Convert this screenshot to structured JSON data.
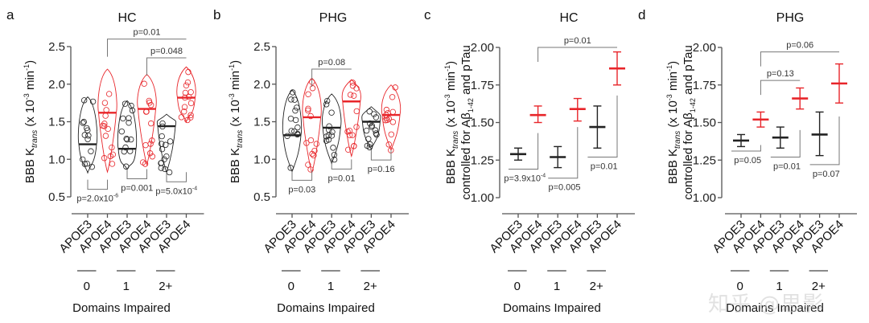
{
  "colors": {
    "apoe3": "#222222",
    "apoe4": "#e8252a",
    "axis": "#555555",
    "bracket": "#777777"
  },
  "watermark": "知乎 @思影",
  "chart_data": [
    {
      "id": "a",
      "type": "violin",
      "letter": "a",
      "title": "HC",
      "ylabel_main": "BBB K",
      "ylabel_sub": "trans",
      "ylabel_unit": " (x 10",
      "ylabel_exp": "-3",
      "ylabel_unit2": " min",
      "ylabel_exp2": "-1",
      "ylabel_close": ")",
      "ylim": [
        0.5,
        2.5
      ],
      "yticks": [
        0.5,
        1.0,
        1.5,
        2.0,
        2.5
      ],
      "ytick_labels": [
        "0.5",
        "1.0",
        "1.5",
        "2.0",
        "2.5"
      ],
      "categories": [
        "APOE3",
        "APOE4",
        "APOE3",
        "APOE4",
        "APOE3",
        "APOE4"
      ],
      "genotype": [
        "APOE3",
        "APOE4",
        "APOE3",
        "APOE4",
        "APOE3",
        "APOE4"
      ],
      "groups": [
        "0",
        "1",
        "2+"
      ],
      "xlabel": "Domains Impaired",
      "series": [
        {
          "name": "APOE3 / 0",
          "median": 1.2,
          "min": 0.82,
          "max": 1.83
        },
        {
          "name": "APOE4 / 0",
          "median": 1.62,
          "min": 0.83,
          "max": 2.2
        },
        {
          "name": "APOE3 / 1",
          "median": 1.14,
          "min": 0.86,
          "max": 1.78
        },
        {
          "name": "APOE4 / 1",
          "median": 1.67,
          "min": 0.93,
          "max": 2.13
        },
        {
          "name": "APOE3 / 2+",
          "median": 1.44,
          "min": 0.82,
          "max": 1.6
        },
        {
          "name": "APOE4 / 2+",
          "median": 1.82,
          "min": 1.5,
          "max": 2.23
        }
      ],
      "brackets_top": [
        {
          "from": 1,
          "to": 5,
          "label": "p=0.01",
          "level": 2.6
        },
        {
          "from": 3,
          "to": 5,
          "label": "p=0.048",
          "level": 2.35
        }
      ],
      "brackets_bottom": [
        {
          "from": 0,
          "to": 1,
          "label": "p=2.0x10",
          "exp": "-6",
          "level": 0.6
        },
        {
          "from": 2,
          "to": 3,
          "label": "p=0.001",
          "level": 0.74
        },
        {
          "from": 4,
          "to": 5,
          "label": "p=5.0x10",
          "exp": "-4",
          "level": 0.7
        }
      ]
    },
    {
      "id": "b",
      "type": "violin",
      "letter": "b",
      "title": "PHG",
      "ylabel_main": "BBB K",
      "ylabel_sub": "trans",
      "ylabel_unit": " (x 10",
      "ylabel_exp": "-3",
      "ylabel_unit2": " min",
      "ylabel_exp2": "-1",
      "ylabel_close": ")",
      "ylim": [
        0.5,
        2.5
      ],
      "yticks": [
        0.5,
        1.0,
        1.5,
        2.0,
        2.5
      ],
      "ytick_labels": [
        "0.5",
        "1.0",
        "1.5",
        "2.0",
        "2.5"
      ],
      "categories": [
        "APOE3",
        "APOE4",
        "APOE3",
        "APOE4",
        "APOE3",
        "APOE4"
      ],
      "genotype": [
        "APOE3",
        "APOE4",
        "APOE3",
        "APOE4",
        "APOE3",
        "APOE4"
      ],
      "groups": [
        "0",
        "1",
        "2+"
      ],
      "xlabel": "Domains Impaired",
      "series": [
        {
          "name": "APOE3 / 0",
          "median": 1.32,
          "min": 0.83,
          "max": 1.92
        },
        {
          "name": "APOE4 / 0",
          "median": 1.56,
          "min": 0.82,
          "max": 2.08
        },
        {
          "name": "APOE3 / 1",
          "median": 1.42,
          "min": 0.94,
          "max": 1.87
        },
        {
          "name": "APOE4 / 1",
          "median": 1.77,
          "min": 1.04,
          "max": 2.06
        },
        {
          "name": "APOE3 / 2+",
          "median": 1.5,
          "min": 1.13,
          "max": 1.7
        },
        {
          "name": "APOE4 / 2+",
          "median": 1.59,
          "min": 1.12,
          "max": 1.99
        }
      ],
      "brackets_top": [
        {
          "from": 1,
          "to": 3,
          "label": "p=0.08",
          "level": 2.2
        }
      ],
      "brackets_bottom": [
        {
          "from": 0,
          "to": 1,
          "label": "p=0.03",
          "level": 0.72
        },
        {
          "from": 2,
          "to": 3,
          "label": "p=0.01",
          "level": 0.87
        },
        {
          "from": 4,
          "to": 5,
          "label": "p=0.16",
          "level": 0.99
        }
      ]
    },
    {
      "id": "c",
      "type": "errorbar",
      "letter": "c",
      "title": "HC",
      "ylabel_main": "BBB K",
      "ylabel_sub": "trans",
      "ylabel_unit": " (x 10",
      "ylabel_exp": "-3",
      "ylabel_unit2": " min",
      "ylabel_exp2": "-1",
      "ylabel_close": ")",
      "ylabel_line2": "controlled for Aβ",
      "ylabel_line2_sub": "1-42",
      "ylabel_line2_end": " and pTau",
      "ylim": [
        1.0,
        2.0
      ],
      "yticks": [
        1.0,
        1.25,
        1.5,
        1.75,
        2.0
      ],
      "ytick_labels": [
        "1.00",
        "1.25",
        "1.50",
        "1.75",
        "2.00"
      ],
      "categories": [
        "APOE3",
        "APOE4",
        "APOE3",
        "APOE4",
        "APOE3",
        "APOE4"
      ],
      "genotype": [
        "APOE3",
        "APOE4",
        "APOE3",
        "APOE4",
        "APOE3",
        "APOE4"
      ],
      "groups": [
        "0",
        "1",
        "2+"
      ],
      "xlabel": "Domains Impaired",
      "series": [
        {
          "name": "APOE3 / 0",
          "mean": 1.29,
          "lo": 1.25,
          "hi": 1.33
        },
        {
          "name": "APOE4 / 0",
          "mean": 1.55,
          "lo": 1.5,
          "hi": 1.61
        },
        {
          "name": "APOE3 / 1",
          "mean": 1.27,
          "lo": 1.2,
          "hi": 1.34
        },
        {
          "name": "APOE4 / 1",
          "mean": 1.59,
          "lo": 1.51,
          "hi": 1.66
        },
        {
          "name": "APOE3 / 2+",
          "mean": 1.47,
          "lo": 1.33,
          "hi": 1.61
        },
        {
          "name": "APOE4 / 2+",
          "mean": 1.86,
          "lo": 1.75,
          "hi": 1.97
        }
      ],
      "brackets_top": [
        {
          "from": 1,
          "to": 5,
          "label": "p=0.01",
          "level": 2.0
        }
      ],
      "brackets_bottom": [
        {
          "from": 0,
          "to": 1,
          "label": "p=3.9x10",
          "exp": "-4",
          "level": 1.19,
          "top": 1.43
        },
        {
          "from": 2,
          "to": 3,
          "label": "p=0.005",
          "level": 1.13,
          "top": 1.47
        },
        {
          "from": 4,
          "to": 5,
          "label": "p=0.01",
          "level": 1.27,
          "top": 1.68
        }
      ]
    },
    {
      "id": "d",
      "type": "errorbar",
      "letter": "d",
      "title": "PHG",
      "ylabel_main": "BBB K",
      "ylabel_sub": "trans",
      "ylabel_unit": " (x 10",
      "ylabel_exp": "-3",
      "ylabel_unit2": " min",
      "ylabel_exp2": "-1",
      "ylabel_close": ")",
      "ylabel_line2": "controlled for Aβ",
      "ylabel_line2_sub": "1-42",
      "ylabel_line2_end": " and pTau",
      "ylim": [
        1.0,
        2.0
      ],
      "yticks": [
        1.0,
        1.25,
        1.5,
        1.75,
        2.0
      ],
      "ytick_labels": [
        "1.00",
        "1.25",
        "1.50",
        "1.75",
        "2.00"
      ],
      "categories": [
        "APOE3",
        "APOE4",
        "APOE3",
        "APOE4",
        "APOE3",
        "APOE4"
      ],
      "genotype": [
        "APOE3",
        "APOE4",
        "APOE3",
        "APOE4",
        "APOE3",
        "APOE4"
      ],
      "groups": [
        "0",
        "1",
        "2+"
      ],
      "xlabel": "Domains Impaired",
      "series": [
        {
          "name": "APOE3 / 0",
          "mean": 1.38,
          "lo": 1.34,
          "hi": 1.42
        },
        {
          "name": "APOE4 / 0",
          "mean": 1.52,
          "lo": 1.47,
          "hi": 1.57
        },
        {
          "name": "APOE3 / 1",
          "mean": 1.4,
          "lo": 1.33,
          "hi": 1.47
        },
        {
          "name": "APOE4 / 1",
          "mean": 1.66,
          "lo": 1.59,
          "hi": 1.73
        },
        {
          "name": "APOE3 / 2+",
          "mean": 1.42,
          "lo": 1.28,
          "hi": 1.57
        },
        {
          "name": "APOE4 / 2+",
          "mean": 1.76,
          "lo": 1.63,
          "hi": 1.89
        }
      ],
      "brackets_top": [
        {
          "from": 1,
          "to": 5,
          "label": "p=0.06",
          "level": 1.97
        },
        {
          "from": 1,
          "to": 3,
          "label": "p=0.13",
          "level": 1.78
        }
      ],
      "brackets_bottom": [
        {
          "from": 0,
          "to": 1,
          "label": "p=0.05",
          "level": 1.31,
          "top": 1.35
        },
        {
          "from": 2,
          "to": 3,
          "label": "p=0.01",
          "level": 1.27,
          "top": 1.45
        },
        {
          "from": 4,
          "to": 5,
          "label": "p=0.07",
          "level": 1.22,
          "top": 1.54
        }
      ]
    }
  ]
}
